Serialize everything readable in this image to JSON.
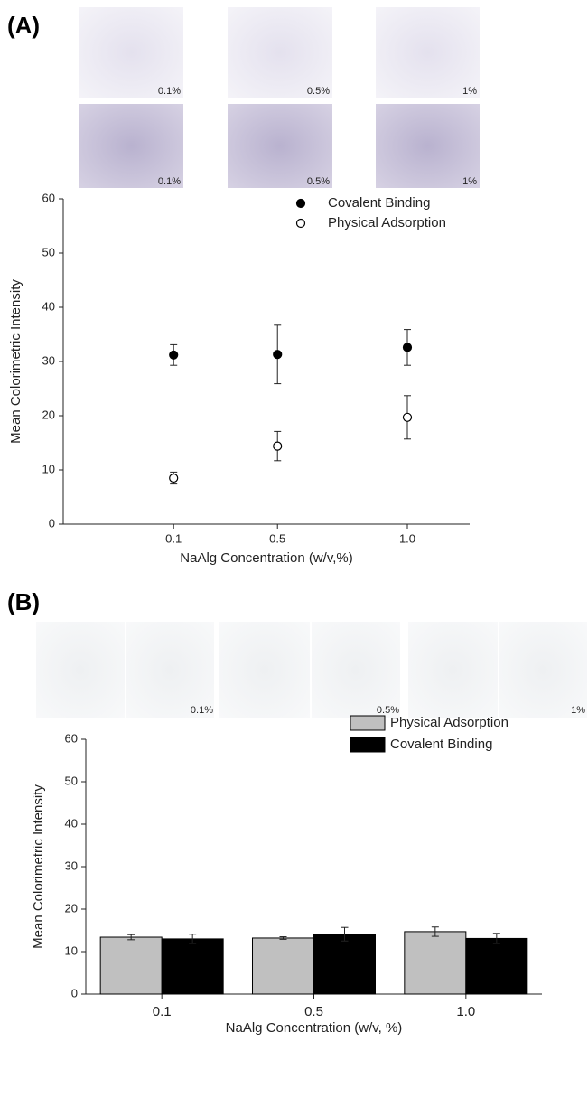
{
  "chart_data": [
    {
      "type": "scatter",
      "label": "(A)",
      "image_labels": [
        "0.1%",
        "0.5%",
        "1%",
        "0.1%",
        "0.5%",
        "1%"
      ],
      "x_label": "NaAlg Concentration (w/v,%)",
      "y_label": "Mean Colorimetric Intensity",
      "x": [
        0.1,
        0.5,
        1
      ],
      "series": [
        {
          "name": "Covalent Binding",
          "color": "#000000",
          "filled": true,
          "values": [
            31.2,
            31.3,
            32.6
          ],
          "errors": [
            1.9,
            5.4,
            3.3
          ]
        },
        {
          "name": "Physical Adsorption",
          "color": "#000000",
          "filled": false,
          "values": [
            8.5,
            14.4,
            19.7
          ],
          "errors": [
            1.1,
            2.7,
            4.0
          ]
        }
      ],
      "xlim": [
        -0.325,
        1.24
      ],
      "xticks": [
        0.1,
        0.5,
        {
          "value": 1,
          "label": "1.0"
        }
      ],
      "ylim": [
        0,
        60
      ],
      "yticks": [
        0,
        10,
        20,
        30,
        40,
        50,
        60
      ],
      "legend": "top-right"
    },
    {
      "type": "bar",
      "label": "(B)",
      "image_labels": [
        "0.1%",
        "0.5%",
        "1%"
      ],
      "x_label": "NaAlg Concentration (w/v, %)",
      "y_label": "Mean Colorimetric Intensity",
      "categories": [
        "0.1",
        "0.5",
        "1.0"
      ],
      "series": [
        {
          "name": "Physical Adsorption",
          "color": "#c0c0c0",
          "values": [
            13.4,
            13.2,
            14.7
          ],
          "errors": [
            0.6,
            0.3,
            1.1
          ]
        },
        {
          "name": "Covalent Binding",
          "color": "#000000",
          "values": [
            13.0,
            14.1,
            13.1
          ],
          "errors": [
            1.1,
            1.6,
            1.2
          ]
        }
      ],
      "ylim": [
        0,
        60
      ],
      "yticks": [
        0,
        10,
        20,
        30,
        40,
        50,
        60
      ],
      "legend": "top-right"
    }
  ]
}
